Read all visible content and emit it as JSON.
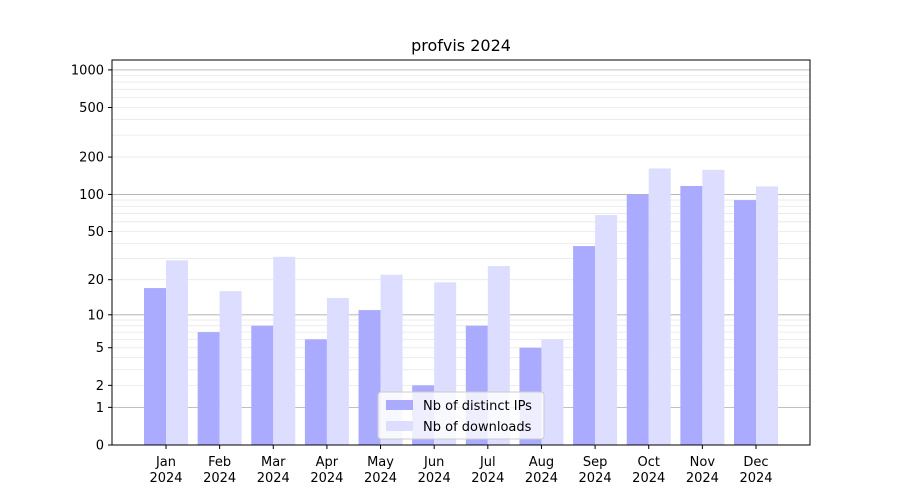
{
  "chart_data": {
    "type": "bar",
    "title": "profvis 2024",
    "categories": [
      "Jan\n2024",
      "Feb\n2024",
      "Mar\n2024",
      "Apr\n2024",
      "May\n2024",
      "Jun\n2024",
      "Jul\n2024",
      "Aug\n2024",
      "Sep\n2024",
      "Oct\n2024",
      "Nov\n2024",
      "Dec\n2024"
    ],
    "series": [
      {
        "name": "Nb of distinct IPs",
        "color": "#aaaaff",
        "values": [
          17,
          7,
          8,
          6,
          11,
          2,
          8,
          5,
          38,
          100,
          117,
          90
        ]
      },
      {
        "name": "Nb of downloads",
        "color": "#ddddff",
        "values": [
          29,
          16,
          31,
          14,
          22,
          19,
          26,
          6,
          68,
          162,
          158,
          116
        ]
      }
    ],
    "y_scale": "symlog",
    "yticks": [
      0,
      1,
      2,
      5,
      10,
      20,
      50,
      100,
      200,
      500,
      1000
    ],
    "ylim": [
      0,
      1200
    ],
    "legend_position": "lower center",
    "grid": true
  }
}
